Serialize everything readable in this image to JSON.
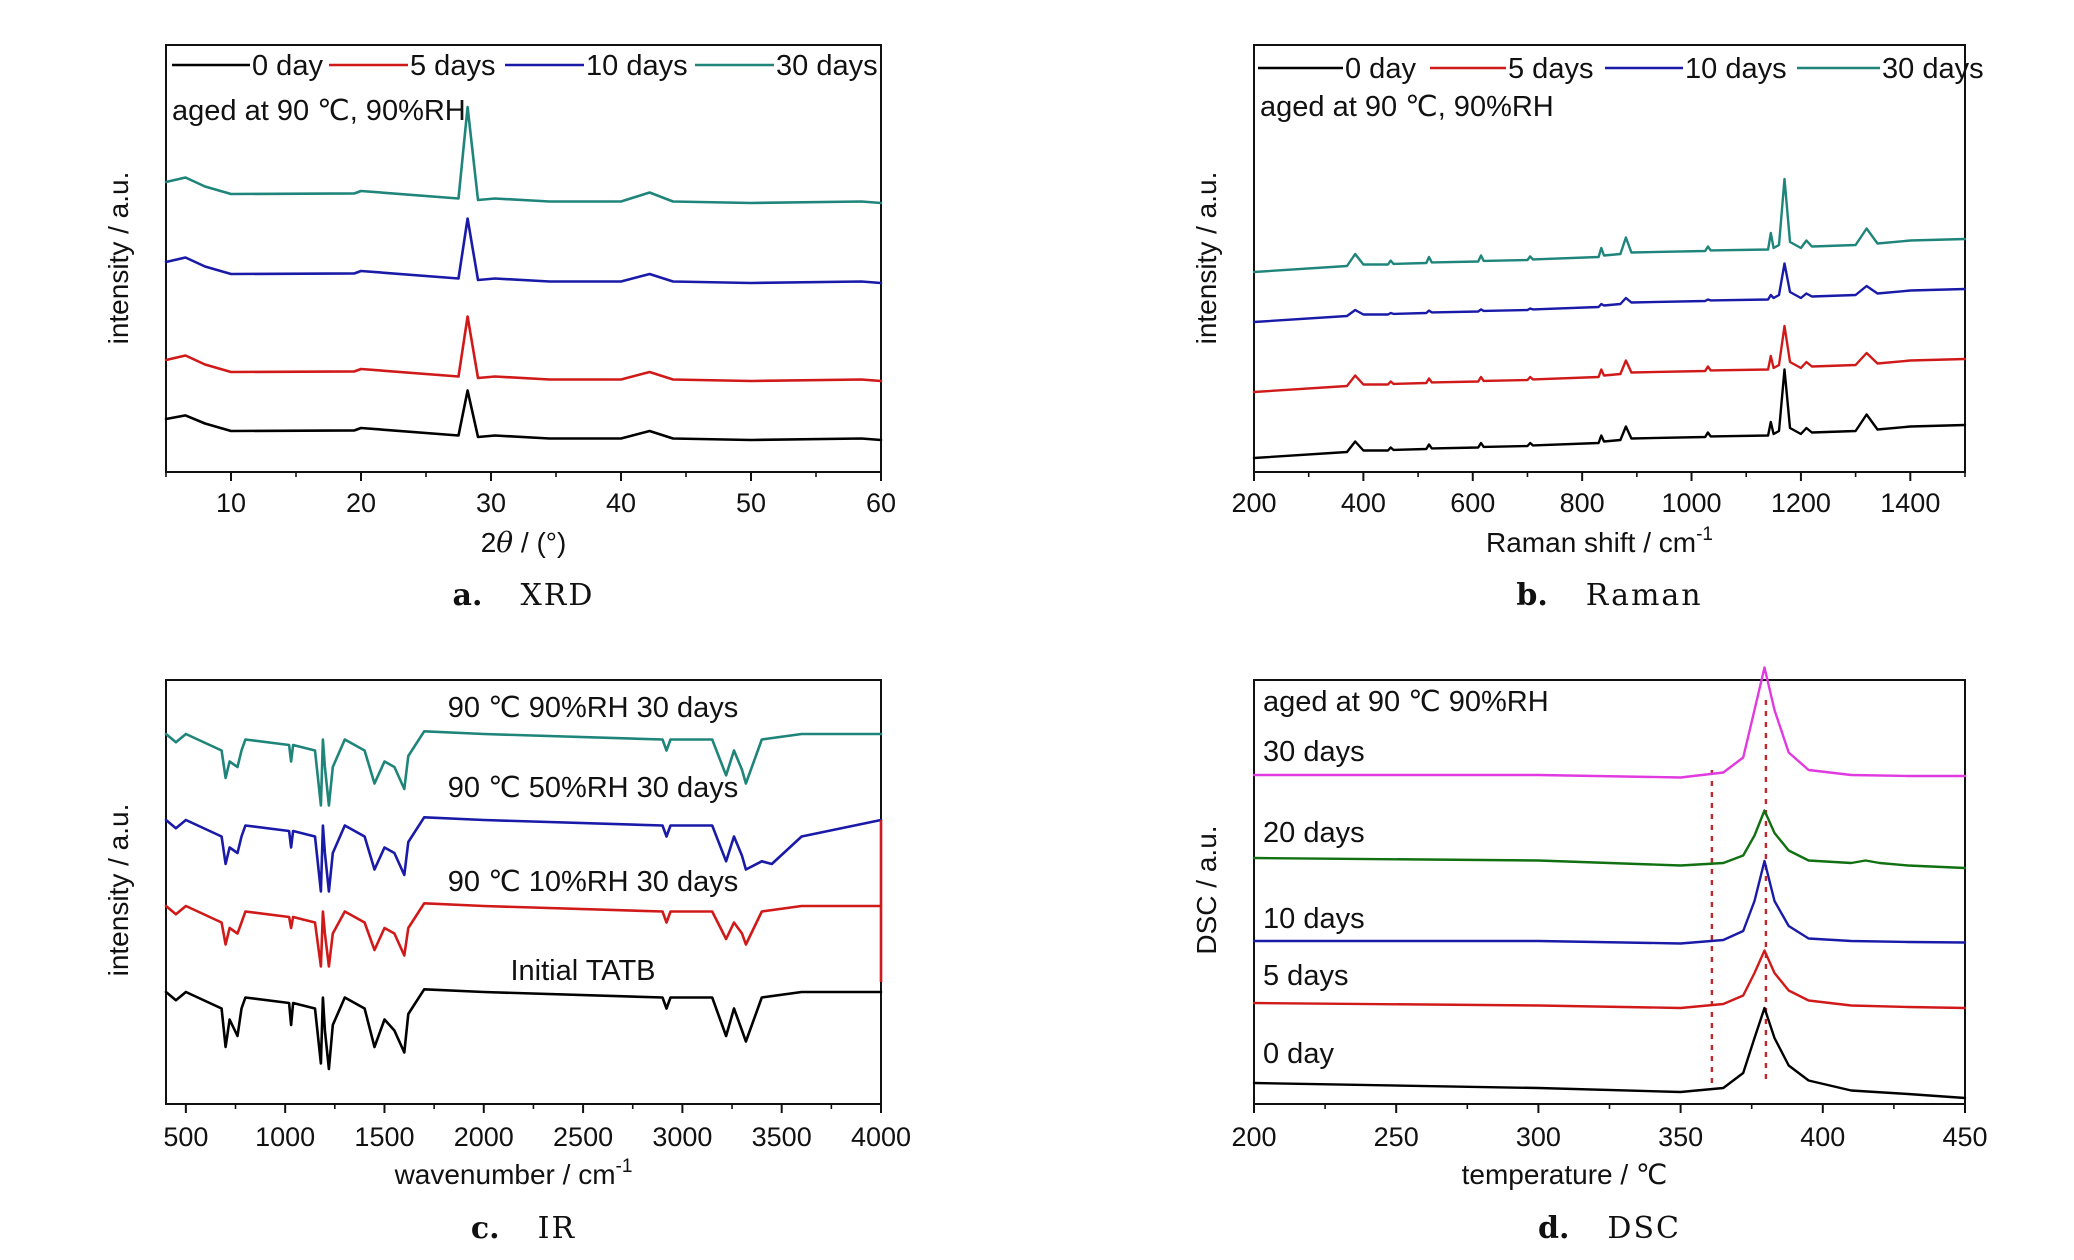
{
  "chart_data": [
    {
      "type": "line",
      "panel_label": "a.",
      "panel_title": "XRD",
      "xlabel_main": "2",
      "xlabel_italic": "θ",
      "xlabel_unit": " / (°)",
      "ylabel": "intensity / a.u.",
      "xlim": [
        5,
        60
      ],
      "xticks": [
        "10",
        "20",
        "30",
        "40",
        "50",
        "60"
      ],
      "y_ticks_labeled": false,
      "legend_position": "top",
      "annotation": "aged at 90 ℃, 90%RH",
      "series": [
        {
          "name": "0 day",
          "color": "#000000",
          "x": [
            5,
            6.5,
            8,
            10,
            19.5,
            20,
            27.5,
            28.2,
            29,
            30.3,
            34.5,
            40,
            42.2,
            44,
            50,
            58.5,
            60
          ],
          "y": [
            1.0,
            1.12,
            0.85,
            0.6,
            0.62,
            0.7,
            0.45,
            1.95,
            0.4,
            0.45,
            0.35,
            0.35,
            0.6,
            0.35,
            0.3,
            0.35,
            0.3
          ]
        },
        {
          "name": "5 days",
          "color": "#d01a1a",
          "x": [
            5,
            6.5,
            8,
            10,
            19.5,
            20,
            27.5,
            28.2,
            29,
            30.3,
            34.5,
            40,
            42.2,
            44,
            50,
            58.5,
            60
          ],
          "y": [
            1.0,
            1.15,
            0.85,
            0.6,
            0.62,
            0.7,
            0.45,
            2.45,
            0.4,
            0.45,
            0.35,
            0.35,
            0.6,
            0.35,
            0.3,
            0.35,
            0.3
          ]
        },
        {
          "name": "10 days",
          "color": "#1a1aa8",
          "x": [
            5,
            6.5,
            8,
            10,
            19.5,
            20,
            27.5,
            28.2,
            29,
            30.3,
            34.5,
            40,
            42.2,
            44,
            50,
            58.5,
            60
          ],
          "y": [
            1.0,
            1.15,
            0.85,
            0.6,
            0.62,
            0.7,
            0.45,
            2.45,
            0.4,
            0.45,
            0.35,
            0.35,
            0.6,
            0.35,
            0.3,
            0.35,
            0.3
          ]
        },
        {
          "name": "30 days",
          "color": "#1f857a",
          "x": [
            5,
            6.5,
            8,
            10,
            19.5,
            20,
            27.5,
            28.2,
            29,
            30.3,
            34.5,
            40,
            42.2,
            44,
            50,
            58.5,
            60
          ],
          "y": [
            1.0,
            1.15,
            0.85,
            0.6,
            0.62,
            0.7,
            0.45,
            3.5,
            0.4,
            0.45,
            0.35,
            0.35,
            0.65,
            0.35,
            0.3,
            0.35,
            0.3
          ]
        }
      ]
    },
    {
      "type": "line",
      "panel_label": "b.",
      "panel_title": "Raman",
      "xlabel": "Raman shift / cm",
      "xlabel_sup": "-1",
      "ylabel": "intensity / a.u.",
      "xlim": [
        200,
        1500
      ],
      "xticks": [
        "200",
        "400",
        "600",
        "800",
        "1000",
        "1200",
        "1400"
      ],
      "y_ticks_labeled": false,
      "legend_position": "top",
      "annotation": "aged at 90 ℃, 90%RH",
      "series": [
        {
          "name": "0 day",
          "color": "#000000",
          "x": [
            200,
            370,
            385,
            400,
            445,
            450,
            455,
            515,
            520,
            525,
            610,
            615,
            620,
            700,
            705,
            710,
            830,
            835,
            840,
            870,
            880,
            890,
            1025,
            1030,
            1035,
            1140,
            1145,
            1150,
            1160,
            1170,
            1180,
            1200,
            1210,
            1220,
            1300,
            1320,
            1340,
            1400,
            1500
          ],
          "y": [
            0.0,
            0.2,
            0.55,
            0.25,
            0.25,
            0.35,
            0.27,
            0.3,
            0.45,
            0.32,
            0.35,
            0.5,
            0.37,
            0.4,
            0.5,
            0.42,
            0.5,
            0.75,
            0.55,
            0.6,
            1.05,
            0.65,
            0.7,
            0.85,
            0.72,
            0.75,
            1.2,
            0.8,
            0.9,
            2.95,
            1.0,
            0.8,
            1.0,
            0.85,
            0.9,
            1.45,
            0.95,
            1.05,
            1.1
          ]
        },
        {
          "name": "5 days",
          "color": "#d01a1a",
          "x": [
            200,
            370,
            385,
            400,
            445,
            450,
            455,
            515,
            520,
            525,
            610,
            615,
            620,
            700,
            705,
            710,
            830,
            835,
            840,
            870,
            880,
            890,
            1025,
            1030,
            1035,
            1140,
            1145,
            1150,
            1160,
            1170,
            1180,
            1200,
            1210,
            1220,
            1300,
            1320,
            1340,
            1400,
            1500
          ],
          "y": [
            0.0,
            0.2,
            0.55,
            0.25,
            0.25,
            0.35,
            0.27,
            0.3,
            0.45,
            0.32,
            0.35,
            0.5,
            0.37,
            0.4,
            0.5,
            0.42,
            0.5,
            0.75,
            0.55,
            0.6,
            1.05,
            0.65,
            0.7,
            0.85,
            0.72,
            0.75,
            1.2,
            0.8,
            0.9,
            2.2,
            1.0,
            0.8,
            1.0,
            0.85,
            0.9,
            1.3,
            0.95,
            1.05,
            1.1
          ]
        },
        {
          "name": "10 days",
          "color": "#1a1aa8",
          "x": [
            200,
            370,
            385,
            400,
            445,
            450,
            455,
            515,
            520,
            525,
            610,
            615,
            620,
            700,
            705,
            710,
            830,
            835,
            840,
            870,
            880,
            890,
            1025,
            1030,
            1035,
            1140,
            1145,
            1150,
            1160,
            1170,
            1180,
            1200,
            1210,
            1220,
            1300,
            1320,
            1340,
            1400,
            1500
          ],
          "y": [
            0.0,
            0.2,
            0.4,
            0.25,
            0.25,
            0.3,
            0.27,
            0.3,
            0.38,
            0.32,
            0.35,
            0.42,
            0.37,
            0.4,
            0.45,
            0.42,
            0.5,
            0.6,
            0.55,
            0.6,
            0.8,
            0.65,
            0.7,
            0.75,
            0.72,
            0.75,
            0.9,
            0.8,
            0.9,
            1.95,
            1.0,
            0.8,
            0.95,
            0.85,
            0.9,
            1.2,
            0.95,
            1.05,
            1.1
          ]
        },
        {
          "name": "30 days",
          "color": "#1f857a",
          "x": [
            200,
            370,
            385,
            400,
            445,
            450,
            455,
            515,
            520,
            525,
            610,
            615,
            620,
            700,
            705,
            710,
            830,
            835,
            840,
            870,
            880,
            890,
            1025,
            1030,
            1035,
            1140,
            1145,
            1150,
            1160,
            1170,
            1180,
            1200,
            1210,
            1220,
            1300,
            1320,
            1340,
            1400,
            1500
          ],
          "y": [
            0.0,
            0.2,
            0.6,
            0.25,
            0.25,
            0.38,
            0.27,
            0.3,
            0.5,
            0.32,
            0.35,
            0.55,
            0.37,
            0.4,
            0.52,
            0.42,
            0.5,
            0.8,
            0.55,
            0.6,
            1.15,
            0.65,
            0.7,
            0.85,
            0.72,
            0.75,
            1.3,
            0.8,
            0.9,
            3.1,
            1.0,
            0.8,
            1.05,
            0.85,
            0.9,
            1.45,
            0.95,
            1.05,
            1.1
          ]
        }
      ]
    },
    {
      "type": "line",
      "panel_label": "c.",
      "panel_title": "IR",
      "xlabel": "wavenumber / cm",
      "xlabel_sup": "-1",
      "ylabel": "intensity / a.u.",
      "xlim": [
        400,
        4000
      ],
      "xticks": [
        "500",
        "1000",
        "1500",
        "2000",
        "2500",
        "3000",
        "3500",
        "4000"
      ],
      "y_ticks_labeled": false,
      "series": [
        {
          "name": "Initial TATB",
          "color": "#000000",
          "x": [
            400,
            450,
            500,
            680,
            700,
            720,
            760,
            780,
            800,
            1020,
            1030,
            1040,
            1150,
            1180,
            1190,
            1200,
            1220,
            1240,
            1300,
            1400,
            1450,
            1500,
            1550,
            1600,
            1620,
            1700,
            2000,
            2900,
            2920,
            2940,
            3150,
            3220,
            3260,
            3300,
            3320,
            3400,
            3600,
            4000
          ],
          "y": [
            0.0,
            -0.15,
            0.0,
            -0.3,
            -1.0,
            -0.5,
            -0.8,
            -0.3,
            -0.1,
            -0.2,
            -0.6,
            -0.2,
            -0.3,
            -1.3,
            -0.1,
            -0.7,
            -1.4,
            -0.6,
            -0.1,
            -0.3,
            -1.0,
            -0.5,
            -0.7,
            -1.1,
            -0.4,
            0.05,
            0.0,
            -0.1,
            -0.3,
            -0.1,
            -0.1,
            -0.8,
            -0.3,
            -0.7,
            -0.9,
            -0.1,
            0.0,
            0.0
          ]
        },
        {
          "name": "90 ℃ 10%RH 30 days",
          "color": "#d01a1a",
          "x": [
            400,
            450,
            500,
            680,
            700,
            720,
            760,
            780,
            800,
            1020,
            1030,
            1040,
            1150,
            1180,
            1190,
            1200,
            1220,
            1240,
            1300,
            1400,
            1450,
            1500,
            1550,
            1600,
            1620,
            1700,
            2000,
            2900,
            2920,
            2940,
            3150,
            3220,
            3260,
            3300,
            3320,
            3400,
            3600,
            4000
          ],
          "y": [
            0.0,
            -0.15,
            0.0,
            -0.3,
            -0.7,
            -0.4,
            -0.5,
            -0.3,
            -0.1,
            -0.2,
            -0.4,
            -0.2,
            -0.3,
            -1.1,
            -0.1,
            -0.5,
            -1.1,
            -0.5,
            -0.1,
            -0.3,
            -0.8,
            -0.4,
            -0.5,
            -0.9,
            -0.4,
            0.05,
            0.0,
            -0.1,
            -0.3,
            -0.1,
            -0.1,
            -0.6,
            -0.3,
            -0.5,
            -0.7,
            -0.1,
            0.0,
            0.0
          ]
        },
        {
          "name": "90 ℃ 50%RH 30 days",
          "color": "#1a1aa8",
          "x": [
            400,
            450,
            500,
            680,
            700,
            720,
            760,
            780,
            800,
            1020,
            1030,
            1040,
            1150,
            1180,
            1190,
            1200,
            1220,
            1240,
            1300,
            1400,
            1450,
            1500,
            1550,
            1600,
            1620,
            1700,
            2000,
            2900,
            2920,
            2940,
            3150,
            3220,
            3260,
            3300,
            3320,
            3400,
            3450,
            3600,
            4000
          ],
          "y": [
            0.0,
            -0.15,
            0.0,
            -0.3,
            -0.8,
            -0.5,
            -0.6,
            -0.3,
            -0.1,
            -0.2,
            -0.5,
            -0.2,
            -0.3,
            -1.3,
            -0.1,
            -0.6,
            -1.3,
            -0.6,
            -0.1,
            -0.3,
            -0.9,
            -0.5,
            -0.6,
            -1.0,
            -0.4,
            0.05,
            0.0,
            -0.1,
            -0.3,
            -0.1,
            -0.1,
            -0.75,
            -0.3,
            -0.65,
            -0.9,
            -0.75,
            -0.8,
            -0.3,
            0.0
          ]
        },
        {
          "name": "90 ℃ 90%RH 30 days",
          "color": "#1f857a",
          "x": [
            400,
            450,
            500,
            680,
            700,
            720,
            760,
            780,
            800,
            1020,
            1030,
            1040,
            1150,
            1180,
            1190,
            1200,
            1220,
            1240,
            1300,
            1400,
            1450,
            1500,
            1550,
            1600,
            1620,
            1700,
            2000,
            2900,
            2920,
            2940,
            3150,
            3220,
            3260,
            3300,
            3320,
            3400,
            3600,
            4000
          ],
          "y": [
            0.0,
            -0.15,
            0.0,
            -0.3,
            -0.8,
            -0.5,
            -0.6,
            -0.3,
            -0.1,
            -0.2,
            -0.5,
            -0.2,
            -0.3,
            -1.3,
            -0.1,
            -0.6,
            -1.3,
            -0.6,
            -0.1,
            -0.3,
            -0.9,
            -0.5,
            -0.6,
            -1.0,
            -0.4,
            0.05,
            0.0,
            -0.1,
            -0.3,
            -0.1,
            -0.1,
            -0.75,
            -0.3,
            -0.65,
            -0.9,
            -0.1,
            0.0,
            0.0
          ]
        }
      ]
    },
    {
      "type": "line",
      "panel_label": "d.",
      "panel_title": "DSC",
      "xlabel": "temperature / ℃",
      "ylabel": "DSC / a.u.",
      "xlim": [
        200,
        450
      ],
      "xticks": [
        "200",
        "250",
        "300",
        "350",
        "400",
        "450"
      ],
      "y_ticks_labeled": false,
      "annotation": "aged at 90 ℃ 90%RH",
      "reference_lines_x": [
        361,
        380
      ],
      "series": [
        {
          "name": "0 day",
          "color": "#000000",
          "x": [
            200,
            300,
            350,
            365,
            372,
            376,
            379.5,
            383,
            388,
            395,
            410,
            430,
            450
          ],
          "y": [
            0.0,
            -0.1,
            -0.18,
            -0.1,
            0.2,
            0.9,
            1.5,
            0.9,
            0.35,
            0.05,
            -0.15,
            -0.22,
            -0.3
          ]
        },
        {
          "name": "5 days",
          "color": "#d01a1a",
          "x": [
            200,
            300,
            350,
            365,
            372,
            376,
            379.5,
            383,
            388,
            395,
            410,
            430,
            450
          ],
          "y": [
            0.0,
            -0.05,
            -0.1,
            -0.02,
            0.15,
            0.6,
            1.05,
            0.6,
            0.25,
            0.05,
            -0.05,
            -0.08,
            -0.1
          ]
        },
        {
          "name": "10 days",
          "color": "#1a1aa8",
          "x": [
            200,
            300,
            350,
            365,
            372,
            376,
            379.5,
            383,
            388,
            395,
            410,
            430,
            450
          ],
          "y": [
            0.0,
            0.0,
            -0.05,
            0.02,
            0.2,
            0.8,
            1.6,
            0.8,
            0.3,
            0.05,
            0.0,
            -0.02,
            -0.03
          ]
        },
        {
          "name": "20 days",
          "color": "#117011",
          "x": [
            200,
            300,
            350,
            365,
            372,
            376,
            379.5,
            383,
            388,
            395,
            410,
            415,
            420,
            430,
            450
          ],
          "y": [
            0.0,
            -0.05,
            -0.15,
            -0.1,
            0.05,
            0.45,
            0.95,
            0.5,
            0.15,
            -0.05,
            -0.1,
            -0.05,
            -0.1,
            -0.15,
            -0.2
          ]
        },
        {
          "name": "30 days",
          "color": "#e03ae0",
          "x": [
            200,
            300,
            350,
            365,
            372,
            376,
            379.5,
            383,
            388,
            395,
            410,
            430,
            450
          ],
          "y": [
            0.0,
            0.0,
            -0.05,
            0.05,
            0.35,
            1.3,
            2.15,
            1.3,
            0.45,
            0.1,
            0.0,
            -0.02,
            -0.02
          ]
        }
      ]
    }
  ]
}
